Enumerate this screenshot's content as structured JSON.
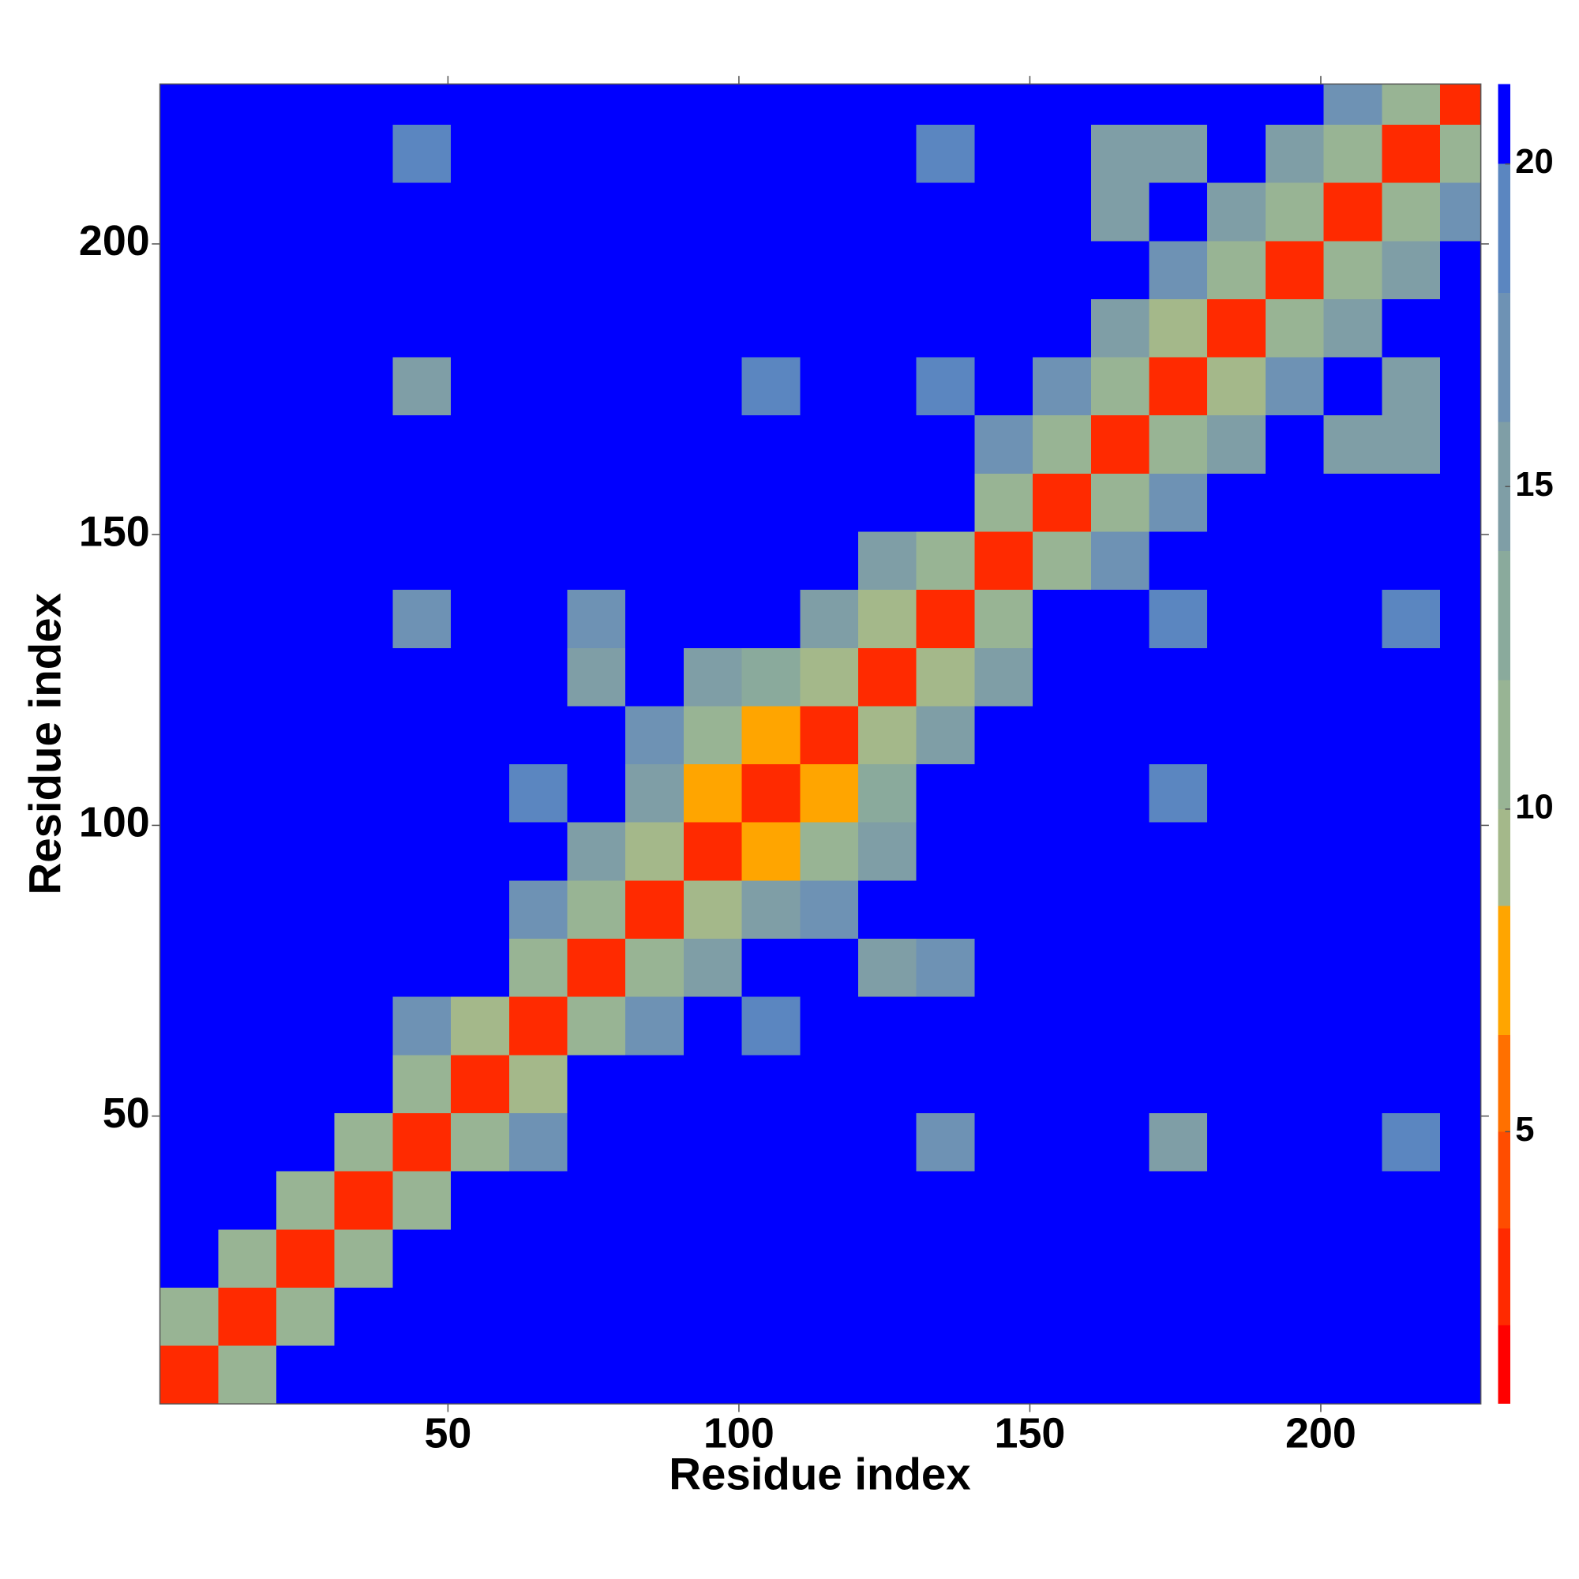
{
  "chart_data": {
    "type": "heatmap",
    "x_label": "Residue index",
    "y_label": "Residue index",
    "xlim": [
      0.5,
      227.5
    ],
    "ylim": [
      0.5,
      227.5
    ],
    "xticks": [
      50,
      100,
      150,
      200
    ],
    "yticks": [
      50,
      100,
      150,
      200
    ],
    "x_bins": [
      0.5,
      10.5,
      20.5,
      30.5,
      40.5,
      50.5,
      60.5,
      70.5,
      80.5,
      90.5,
      100.5,
      110.5,
      120.5,
      130.5,
      140.5,
      150.5,
      160.5,
      170.5,
      180.5,
      190.5,
      200.5,
      210.5,
      220.5,
      227.5
    ],
    "y_bins": [
      0.5,
      10.5,
      20.5,
      30.5,
      40.5,
      50.5,
      60.5,
      70.5,
      80.5,
      90.5,
      100.5,
      110.5,
      120.5,
      130.5,
      140.5,
      150.5,
      160.5,
      170.5,
      180.5,
      190.5,
      200.5,
      210.5,
      220.5,
      227.5
    ],
    "z": [
      [
        3,
        11,
        21,
        21,
        21,
        21,
        21,
        21,
        21,
        21,
        21,
        21,
        21,
        21,
        21,
        21,
        21,
        21,
        21,
        21,
        21,
        21,
        21
      ],
      [
        11,
        3,
        11,
        21,
        21,
        21,
        21,
        21,
        21,
        21,
        21,
        21,
        21,
        21,
        21,
        21,
        21,
        21,
        21,
        21,
        21,
        21,
        21
      ],
      [
        21,
        11,
        3,
        11,
        21,
        21,
        21,
        21,
        21,
        21,
        21,
        21,
        21,
        21,
        21,
        21,
        21,
        21,
        21,
        21,
        21,
        21,
        21
      ],
      [
        21,
        21,
        11,
        3,
        11,
        21,
        21,
        21,
        21,
        21,
        21,
        21,
        21,
        21,
        21,
        21,
        21,
        21,
        21,
        21,
        21,
        21,
        21
      ],
      [
        21,
        21,
        21,
        11,
        3,
        10,
        16,
        21,
        21,
        21,
        21,
        21,
        21,
        17,
        21,
        21,
        21,
        14,
        21,
        21,
        21,
        18,
        21
      ],
      [
        21,
        21,
        21,
        21,
        10,
        3,
        9,
        21,
        21,
        21,
        21,
        21,
        21,
        21,
        21,
        21,
        21,
        21,
        21,
        21,
        21,
        21,
        21
      ],
      [
        21,
        21,
        21,
        21,
        16,
        9,
        3,
        10,
        17,
        21,
        18,
        21,
        21,
        21,
        21,
        21,
        21,
        21,
        21,
        21,
        21,
        21,
        21
      ],
      [
        21,
        21,
        21,
        21,
        21,
        21,
        10,
        3,
        10,
        15,
        21,
        21,
        15,
        16,
        21,
        21,
        21,
        21,
        21,
        21,
        21,
        21,
        21
      ],
      [
        21,
        21,
        21,
        21,
        21,
        21,
        17,
        10,
        3,
        9,
        14,
        16,
        21,
        21,
        21,
        21,
        21,
        21,
        21,
        21,
        21,
        21,
        21
      ],
      [
        21,
        21,
        21,
        21,
        21,
        21,
        21,
        15,
        9,
        3,
        8,
        11,
        14,
        21,
        21,
        21,
        21,
        21,
        21,
        21,
        21,
        21,
        21
      ],
      [
        21,
        21,
        21,
        21,
        21,
        21,
        18,
        21,
        14,
        8,
        3,
        8,
        12,
        21,
        21,
        21,
        21,
        18,
        21,
        21,
        21,
        21,
        21
      ],
      [
        21,
        21,
        21,
        21,
        21,
        21,
        21,
        21,
        16,
        11,
        8,
        3,
        9,
        14,
        21,
        21,
        21,
        21,
        21,
        21,
        21,
        21,
        21
      ],
      [
        21,
        21,
        21,
        21,
        21,
        21,
        21,
        15,
        21,
        14,
        12,
        9,
        3,
        9,
        15,
        21,
        21,
        21,
        21,
        21,
        21,
        21,
        21
      ],
      [
        21,
        21,
        21,
        21,
        17,
        21,
        21,
        16,
        21,
        21,
        21,
        14,
        9,
        3,
        10,
        21,
        21,
        18,
        21,
        21,
        21,
        18,
        21
      ],
      [
        21,
        21,
        21,
        21,
        21,
        21,
        21,
        21,
        21,
        21,
        21,
        21,
        15,
        10,
        3,
        11,
        16,
        21,
        21,
        21,
        21,
        21,
        21
      ],
      [
        21,
        21,
        21,
        21,
        21,
        21,
        21,
        21,
        21,
        21,
        21,
        21,
        21,
        21,
        11,
        3,
        10,
        16,
        21,
        21,
        21,
        21,
        21
      ],
      [
        21,
        21,
        21,
        21,
        21,
        21,
        21,
        21,
        21,
        21,
        21,
        21,
        21,
        21,
        16,
        10,
        3,
        10,
        15,
        21,
        15,
        14,
        21
      ],
      [
        21,
        21,
        21,
        21,
        14,
        21,
        21,
        21,
        21,
        21,
        18,
        21,
        21,
        18,
        21,
        16,
        10,
        3,
        9,
        16,
        21,
        14,
        21
      ],
      [
        21,
        21,
        21,
        21,
        21,
        21,
        21,
        21,
        21,
        21,
        21,
        21,
        21,
        21,
        21,
        21,
        15,
        9,
        3,
        10,
        15,
        21,
        21
      ],
      [
        21,
        21,
        21,
        21,
        21,
        21,
        21,
        21,
        21,
        21,
        21,
        21,
        21,
        21,
        21,
        21,
        21,
        16,
        10,
        3,
        10,
        15,
        21
      ],
      [
        21,
        21,
        21,
        21,
        21,
        21,
        21,
        21,
        21,
        21,
        21,
        21,
        21,
        21,
        21,
        21,
        15,
        21,
        15,
        10,
        3,
        11,
        16
      ],
      [
        21,
        21,
        21,
        21,
        18,
        21,
        21,
        21,
        21,
        21,
        21,
        21,
        21,
        18,
        21,
        21,
        14,
        14,
        21,
        15,
        11,
        3,
        11
      ],
      [
        21,
        21,
        21,
        21,
        21,
        21,
        21,
        21,
        21,
        21,
        21,
        21,
        21,
        21,
        21,
        21,
        21,
        21,
        21,
        21,
        16,
        11,
        3
      ]
    ],
    "colorbar": {
      "levels": [
        0.78,
        2,
        3.5,
        5,
        6.5,
        8.5,
        10,
        12,
        14,
        16,
        18,
        20,
        21.24
      ],
      "colors": [
        "#ff0000",
        "#ff2a00",
        "#ff4d00",
        "#ff7000",
        "#ffa500",
        "#a4b88a",
        "#98b494",
        "#8aaa9c",
        "#7f9ea6",
        "#6e92b4",
        "#5b86c0",
        "#0000ff"
      ],
      "ticks": [
        5,
        10,
        15,
        20
      ]
    }
  }
}
